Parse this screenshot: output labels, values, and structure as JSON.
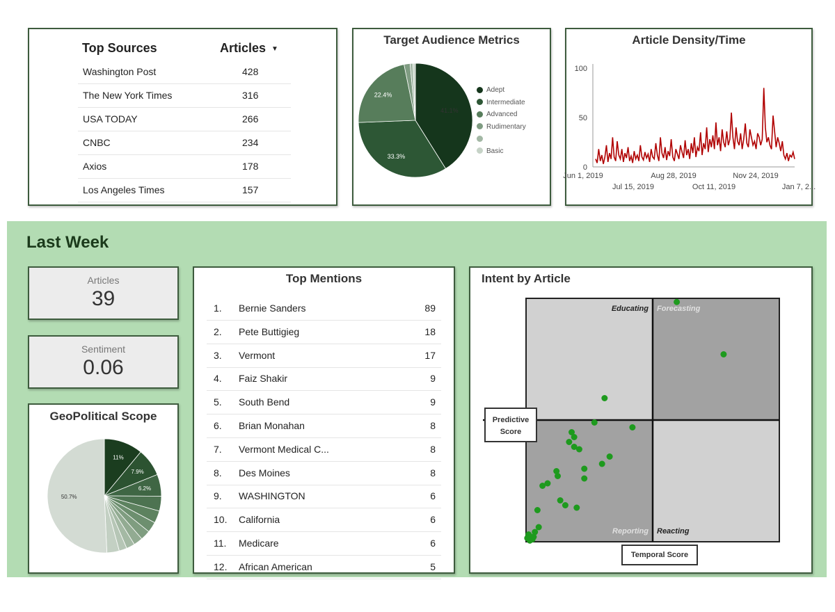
{
  "top_sources": {
    "header_name": "Top Sources",
    "header_value": "Articles",
    "sort_icon": "▼",
    "rows": [
      {
        "name": "Washington Post",
        "value": "428"
      },
      {
        "name": "The New York Times",
        "value": "316"
      },
      {
        "name": "USA TODAY",
        "value": "266"
      },
      {
        "name": "CNBC",
        "value": "234"
      },
      {
        "name": "Axios",
        "value": "178"
      },
      {
        "name": "Los Angeles Times",
        "value": "157"
      }
    ]
  },
  "audience": {
    "title": "Target Audience Metrics",
    "chart_data": {
      "type": "pie",
      "slices": [
        {
          "label": "Adept",
          "value": 41.1,
          "color": "#15361c",
          "text": "41.1%"
        },
        {
          "label": "Intermediate",
          "value": 33.3,
          "color": "#2d5735",
          "text": "33.3%"
        },
        {
          "label": "Advanced",
          "value": 22.4,
          "color": "#577d5b",
          "text": "22.4%"
        },
        {
          "label": "Rudimentary",
          "value": 1.7,
          "color": "#7f9c82",
          "text": ""
        },
        {
          "label": "",
          "value": 0.8,
          "color": "#a3b8a5",
          "text": ""
        },
        {
          "label": "Basic",
          "value": 0.7,
          "color": "#c6d3c7",
          "text": ""
        }
      ]
    }
  },
  "density": {
    "title": "Article Density/Time",
    "chart_data": {
      "type": "line",
      "color": "#b00000",
      "ylim": [
        0,
        100
      ],
      "y_ticks": [
        "0",
        "50",
        "100"
      ],
      "x_ticks_top": [
        "Jun 1, 2019",
        "Aug 28, 2019",
        "Nov 24, 2019"
      ],
      "x_ticks_bottom": [
        "Jul 15, 2019",
        "Oct 11, 2019",
        "Jan 7, 2..."
      ],
      "values": [
        8,
        4,
        18,
        6,
        12,
        3,
        10,
        22,
        5,
        14,
        8,
        30,
        10,
        6,
        26,
        12,
        8,
        18,
        5,
        14,
        9,
        20,
        6,
        11,
        4,
        16,
        8,
        12,
        6,
        22,
        10,
        7,
        15,
        9,
        13,
        5,
        18,
        10,
        8,
        24,
        12,
        6,
        30,
        14,
        9,
        20,
        7,
        16,
        11,
        28,
        10,
        6,
        18,
        13,
        8,
        22,
        15,
        9,
        27,
        12,
        18,
        8,
        24,
        14,
        30,
        10,
        20,
        16,
        35,
        12,
        24,
        18,
        40,
        15,
        28,
        20,
        32,
        18,
        45,
        22,
        30,
        16,
        38,
        25,
        20,
        36,
        22,
        28,
        55,
        30,
        18,
        40,
        26,
        22,
        34,
        18,
        28,
        44,
        24,
        20,
        38,
        30,
        22,
        26,
        18,
        34,
        30,
        22,
        28,
        80,
        40,
        25,
        30,
        22,
        18,
        52,
        36,
        20,
        30,
        24,
        16,
        26,
        12,
        8,
        14,
        6,
        12,
        10,
        15,
        8
      ]
    }
  },
  "last_week": {
    "title": "Last Week",
    "articles_label": "Articles",
    "articles_value": "39",
    "sentiment_label": "Sentiment",
    "sentiment_value": "0.06"
  },
  "geo": {
    "title": "GeoPolitical Scope",
    "chart_data": {
      "type": "pie",
      "slices": [
        {
          "value": 11,
          "color": "#1b3d1f",
          "text": "11%"
        },
        {
          "value": 7.9,
          "color": "#2c5331",
          "text": "7.9%"
        },
        {
          "value": 6.2,
          "color": "#3f6644",
          "text": "6.2%"
        },
        {
          "value": 4.2,
          "color": "#4d7351",
          "text": ""
        },
        {
          "value": 3.5,
          "color": "#5d825f",
          "text": ""
        },
        {
          "value": 3.0,
          "color": "#6d8f6f",
          "text": ""
        },
        {
          "value": 2.8,
          "color": "#7f9d80",
          "text": ""
        },
        {
          "value": 2.6,
          "color": "#92ab92",
          "text": ""
        },
        {
          "value": 2.4,
          "color": "#a4b9a4",
          "text": ""
        },
        {
          "value": 2.2,
          "color": "#b6c6b6",
          "text": ""
        },
        {
          "value": 3.5,
          "color": "#c3d0c3",
          "text": ""
        },
        {
          "value": 50.7,
          "color": "#d3dbd3",
          "text": "50.7%"
        }
      ]
    }
  },
  "mentions": {
    "title": "Top Mentions",
    "rows": [
      {
        "index": "1.",
        "name": "Bernie Sanders",
        "value": "89"
      },
      {
        "index": "2.",
        "name": "Pete Buttigieg",
        "value": "18"
      },
      {
        "index": "3.",
        "name": "Vermont",
        "value": "17"
      },
      {
        "index": "4.",
        "name": "Faiz Shakir",
        "value": "9"
      },
      {
        "index": "5.",
        "name": "South Bend",
        "value": "9"
      },
      {
        "index": "6.",
        "name": "Brian Monahan",
        "value": "8"
      },
      {
        "index": "7.",
        "name": "Vermont Medical C...",
        "value": "8"
      },
      {
        "index": "8.",
        "name": "Des Moines",
        "value": "8"
      },
      {
        "index": "9.",
        "name": "WASHINGTON",
        "value": "6"
      },
      {
        "index": "10.",
        "name": "California",
        "value": "6"
      },
      {
        "index": "11.",
        "name": "Medicare",
        "value": "6"
      },
      {
        "index": "12.",
        "name": "African American",
        "value": "5"
      }
    ]
  },
  "intent": {
    "title": "Intent by Article",
    "y_axis": "Predictive Score",
    "x_axis": "Temporal Score",
    "quadrants": {
      "top_left": "Educating",
      "top_right": "Forecasting",
      "bottom_left": "Reporting",
      "bottom_right": "Reacting"
    },
    "chart_data": {
      "type": "scatter",
      "color": "#1e9a1e",
      "xlim": [
        0,
        1
      ],
      "ylim": [
        0,
        1
      ],
      "points": [
        [
          0.595,
          0.985
        ],
        [
          0.78,
          0.77
        ],
        [
          0.31,
          0.59
        ],
        [
          0.42,
          0.47
        ],
        [
          0.27,
          0.49
        ],
        [
          0.18,
          0.45
        ],
        [
          0.19,
          0.43
        ],
        [
          0.17,
          0.41
        ],
        [
          0.19,
          0.39
        ],
        [
          0.21,
          0.38
        ],
        [
          0.33,
          0.35
        ],
        [
          0.3,
          0.32
        ],
        [
          0.23,
          0.3
        ],
        [
          0.12,
          0.29
        ],
        [
          0.125,
          0.27
        ],
        [
          0.23,
          0.26
        ],
        [
          0.085,
          0.24
        ],
        [
          0.065,
          0.23
        ],
        [
          0.135,
          0.17
        ],
        [
          0.155,
          0.15
        ],
        [
          0.2,
          0.14
        ],
        [
          0.045,
          0.13
        ],
        [
          0.05,
          0.06
        ],
        [
          0.035,
          0.04
        ],
        [
          0.01,
          0.03
        ],
        [
          0.02,
          0.02
        ],
        [
          0.025,
          0.01
        ],
        [
          0.005,
          0.015
        ],
        [
          0.015,
          0.005
        ],
        [
          0.03,
          0.02
        ]
      ]
    }
  }
}
